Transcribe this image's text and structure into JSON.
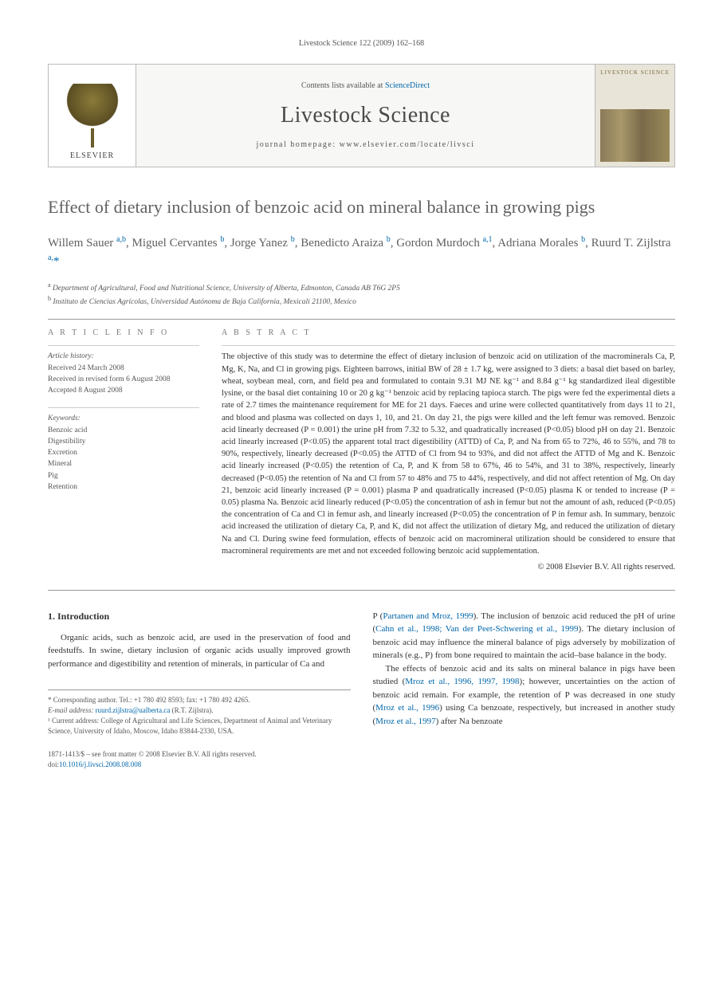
{
  "running_head": "Livestock Science 122 (2009) 162–168",
  "masthead": {
    "contents_prefix": "Contents lists available at ",
    "contents_link": "ScienceDirect",
    "journal": "Livestock Science",
    "homepage_label": "journal homepage: ",
    "homepage_url": "www.elsevier.com/locate/livsci",
    "publisher": "ELSEVIER",
    "cover_label": "LIVESTOCK SCIENCE"
  },
  "title": "Effect of dietary inclusion of benzoic acid on mineral balance in growing pigs",
  "authors_html": "Willem Sauer <sup>a,b</sup>, Miguel Cervantes <sup>b</sup>, Jorge Yanez <sup>b</sup>, Benedicto Araiza <sup>b</sup>, Gordon Murdoch <sup>a,1</sup>, Adriana Morales <sup>b</sup>, Ruurd T. Zijlstra <sup>a,</sup><span class='star'>*</span>",
  "affiliations": {
    "a": "Department of Agricultural, Food and Nutritional Science, University of Alberta, Edmonton, Canada AB T6G 2P5",
    "b": "Instituto de Ciencias Agrícolas, Universidad Autónoma de Baja California, Mexicali 21100, Mexico"
  },
  "info": {
    "label": "A R T I C L E   I N F O",
    "history_heading": "Article history:",
    "history": [
      "Received 24 March 2008",
      "Received in revised form 6 August 2008",
      "Accepted 8 August 2008"
    ],
    "keywords_heading": "Keywords:",
    "keywords": [
      "Benzoic acid",
      "Digestibility",
      "Excretion",
      "Mineral",
      "Pig",
      "Retention"
    ]
  },
  "abstract": {
    "label": "A B S T R A C T",
    "text": "The objective of this study was to determine the effect of dietary inclusion of benzoic acid on utilization of the macrominerals Ca, P, Mg, K, Na, and Cl in growing pigs. Eighteen barrows, initial BW of 28 ± 1.7 kg, were assigned to 3 diets: a basal diet based on barley, wheat, soybean meal, corn, and field pea and formulated to contain 9.31 MJ NE kg⁻¹ and 8.84 g⁻¹ kg standardized ileal digestible lysine, or the basal diet containing 10 or 20 g kg⁻¹ benzoic acid by replacing tapioca starch. The pigs were fed the experimental diets a rate of 2.7 times the maintenance requirement for ME for 21 days. Faeces and urine were collected quantitatively from days 11 to 21, and blood and plasma was collected on days 1, 10, and 21. On day 21, the pigs were killed and the left femur was removed. Benzoic acid linearly decreased (P = 0.001) the urine pH from 7.32 to 5.32, and quadratically increased (P<0.05) blood pH on day 21. Benzoic acid linearly increased (P<0.05) the apparent total tract digestibility (ATTD) of Ca, P, and Na from 65 to 72%, 46 to 55%, and 78 to 90%, respectively, linearly decreased (P<0.05) the ATTD of Cl from 94 to 93%, and did not affect the ATTD of Mg and K. Benzoic acid linearly increased (P<0.05) the retention of Ca, P, and K from 58 to 67%, 46 to 54%, and 31 to 38%, respectively, linearly decreased (P<0.05) the retention of Na and Cl from 57 to 48% and 75 to 44%, respectively, and did not affect retention of Mg. On day 21, benzoic acid linearly increased (P = 0.001) plasma P and quadratically increased (P<0.05) plasma K or tended to increase (P = 0.05) plasma Na. Benzoic acid linearly reduced (P<0.05) the concentration of ash in femur but not the amount of ash, reduced (P<0.05) the concentration of Ca and Cl in femur ash, and linearly increased (P<0.05) the concentration of P in femur ash. In summary, benzoic acid increased the utilization of dietary Ca, P, and K, did not affect the utilization of dietary Mg, and reduced the utilization of dietary Na and Cl. During swine feed formulation, effects of benzoic acid on macromineral utilization should be considered to ensure that macromineral requirements are met and not exceeded following benzoic acid supplementation.",
    "copyright": "© 2008 Elsevier B.V. All rights reserved."
  },
  "body": {
    "section_heading": "1. Introduction",
    "col1": "Organic acids, such as benzoic acid, are used in the preservation of food and feedstuffs. In swine, dietary inclusion of organic acids usually improved growth performance and digestibility and retention of minerals, in particular of Ca and",
    "col2_p1_pre": "P (",
    "col2_p1_ref1": "Partanen and Mroz, 1999",
    "col2_p1_mid1": "). The inclusion of benzoic acid reduced the pH of urine (",
    "col2_p1_ref2": "Cahn et al., 1998; Van der Peet-Schwering et al., 1999",
    "col2_p1_mid2": "). The dietary inclusion of benzoic acid may influence the mineral balance of pigs adversely by mobilization of minerals (e.g., P) from bone required to maintain the acid–base balance in the body.",
    "col2_p2_pre": "The effects of benzoic acid and its salts on mineral balance in pigs have been studied (",
    "col2_p2_ref1": "Mroz et al., 1996, 1997, 1998",
    "col2_p2_mid1": "); however, uncertainties on the action of benzoic acid remain. For example, the retention of P was decreased in one study (",
    "col2_p2_ref2": "Mroz et al., 1996",
    "col2_p2_mid2": ") using Ca benzoate, respectively, but increased in another study (",
    "col2_p2_ref3": "Mroz et al., 1997",
    "col2_p2_end": ") after Na benzoate"
  },
  "footnotes": {
    "corr_label": "* Corresponding author. Tel.: +1 780 492 8593; fax: +1 780 492 4265.",
    "email_label": "E-mail address: ",
    "email": "ruurd.zijlstra@ualberta.ca",
    "email_suffix": " (R.T. Zijlstra).",
    "note1": "¹ Current address: College of Agricultural and Life Sciences, Department of Animal and Veterinary Science, University of Idaho, Moscow, Idaho 83844-2330, USA."
  },
  "footer": {
    "line1": "1871-1413/$ – see front matter © 2008 Elsevier B.V. All rights reserved.",
    "doi_label": "doi:",
    "doi": "10.1016/j.livsci.2008.08.008"
  },
  "colors": {
    "link": "#0066aa",
    "text": "#333333",
    "muted": "#555555",
    "heading_gray": "#606060",
    "rule": "#999999"
  },
  "typography": {
    "title_fontsize": 22,
    "authors_fontsize": 15,
    "abstract_fontsize": 10.5,
    "body_fontsize": 11,
    "footnote_fontsize": 9
  }
}
